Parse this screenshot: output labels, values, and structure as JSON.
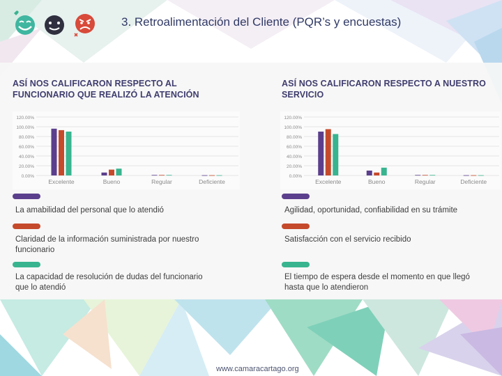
{
  "slide": {
    "title": "3. Retroalimentación del Cliente (PQR’s y encuestas)",
    "footer_url": "www.camaracartago.org",
    "icons": [
      "happy-face-icon",
      "neutral-face-icon",
      "angry-face-icon"
    ]
  },
  "colors": {
    "purple": "#5b3f8c",
    "red": "#c54a2c",
    "green": "#38b48f",
    "title": "#303a66"
  },
  "left": {
    "heading_line1": "ASÍ NOS CALIFICARON RESPECTO AL",
    "heading_line2": "FUNCIONARIO QUE REALIZÓ LA  ATENCIÓN",
    "legend": [
      {
        "text_line1": "La amabilidad del personal que lo atendió",
        "text_line2": "",
        "color": "#5b3f8c"
      },
      {
        "text_line1": "Claridad de la información suministrada por nuestro",
        "text_line2": "funcionario",
        "color": "#c54a2c"
      },
      {
        "text_line1": "La capacidad de resolución de dudas del funcionario",
        "text_line2": "que lo atendió",
        "color": "#38b48f"
      }
    ]
  },
  "right": {
    "heading_line1": "ASÍ NOS CALIFICARON RESPECTO A NUESTRO",
    "heading_line2": "SERVICIO",
    "legend": [
      {
        "text_line1": "Agilidad, oportunidad, confiabilidad en su trámite",
        "text_line2": "",
        "color": "#5b3f8c"
      },
      {
        "text_line1": "Satisfacción con el servicio recibido",
        "text_line2": "",
        "color": "#c54a2c"
      },
      {
        "text_line1": "El tiempo de espera desde el momento en que llegó",
        "text_line2": "hasta que lo atendieron",
        "color": "#38b48f"
      }
    ]
  },
  "chart_data": [
    {
      "type": "bar",
      "title": "ASÍ NOS CALIFICARON RESPECTO AL FUNCIONARIO QUE REALIZÓ LA ATENCIÓN",
      "categories": [
        "Excelente",
        "Bueno",
        "Regular",
        "Deficiente"
      ],
      "ylim": [
        0,
        120
      ],
      "yticks": [
        "0.00%",
        "20.00%",
        "40.00%",
        "60.00%",
        "80.00%",
        "100.00%",
        "120.00%"
      ],
      "series": [
        {
          "name": "La amabilidad del personal que lo atendió",
          "color": "#5b3f8c",
          "values": [
            96,
            6,
            1,
            0.5
          ]
        },
        {
          "name": "Claridad de la información suministrada por nuestro funcionario",
          "color": "#c54a2c",
          "values": [
            93,
            12,
            1,
            0.5
          ]
        },
        {
          "name": "La capacidad de resolución de dudas del funcionario que lo atendió",
          "color": "#38b48f",
          "values": [
            90,
            14,
            1,
            0.5
          ]
        }
      ]
    },
    {
      "type": "bar",
      "title": "ASÍ NOS CALIFICARON RESPECTO A NUESTRO SERVICIO",
      "categories": [
        "Excelente",
        "Bueno",
        "Regular",
        "Deficiente"
      ],
      "ylim": [
        0,
        120
      ],
      "yticks": [
        "0.00%",
        "20.00%",
        "40.00%",
        "60.00%",
        "80.00%",
        "100.00%",
        "120.00%"
      ],
      "series": [
        {
          "name": "Agilidad, oportunidad, confiabilidad en su trámite",
          "color": "#5b3f8c",
          "values": [
            90,
            10,
            1,
            0.5
          ]
        },
        {
          "name": "Satisfacción con el servicio recibido",
          "color": "#c54a2c",
          "values": [
            95,
            6,
            1,
            0.5
          ]
        },
        {
          "name": "El tiempo de espera desde el momento en que llegó hasta que lo atendieron",
          "color": "#38b48f",
          "values": [
            85,
            16,
            1,
            0.5
          ]
        }
      ]
    }
  ]
}
